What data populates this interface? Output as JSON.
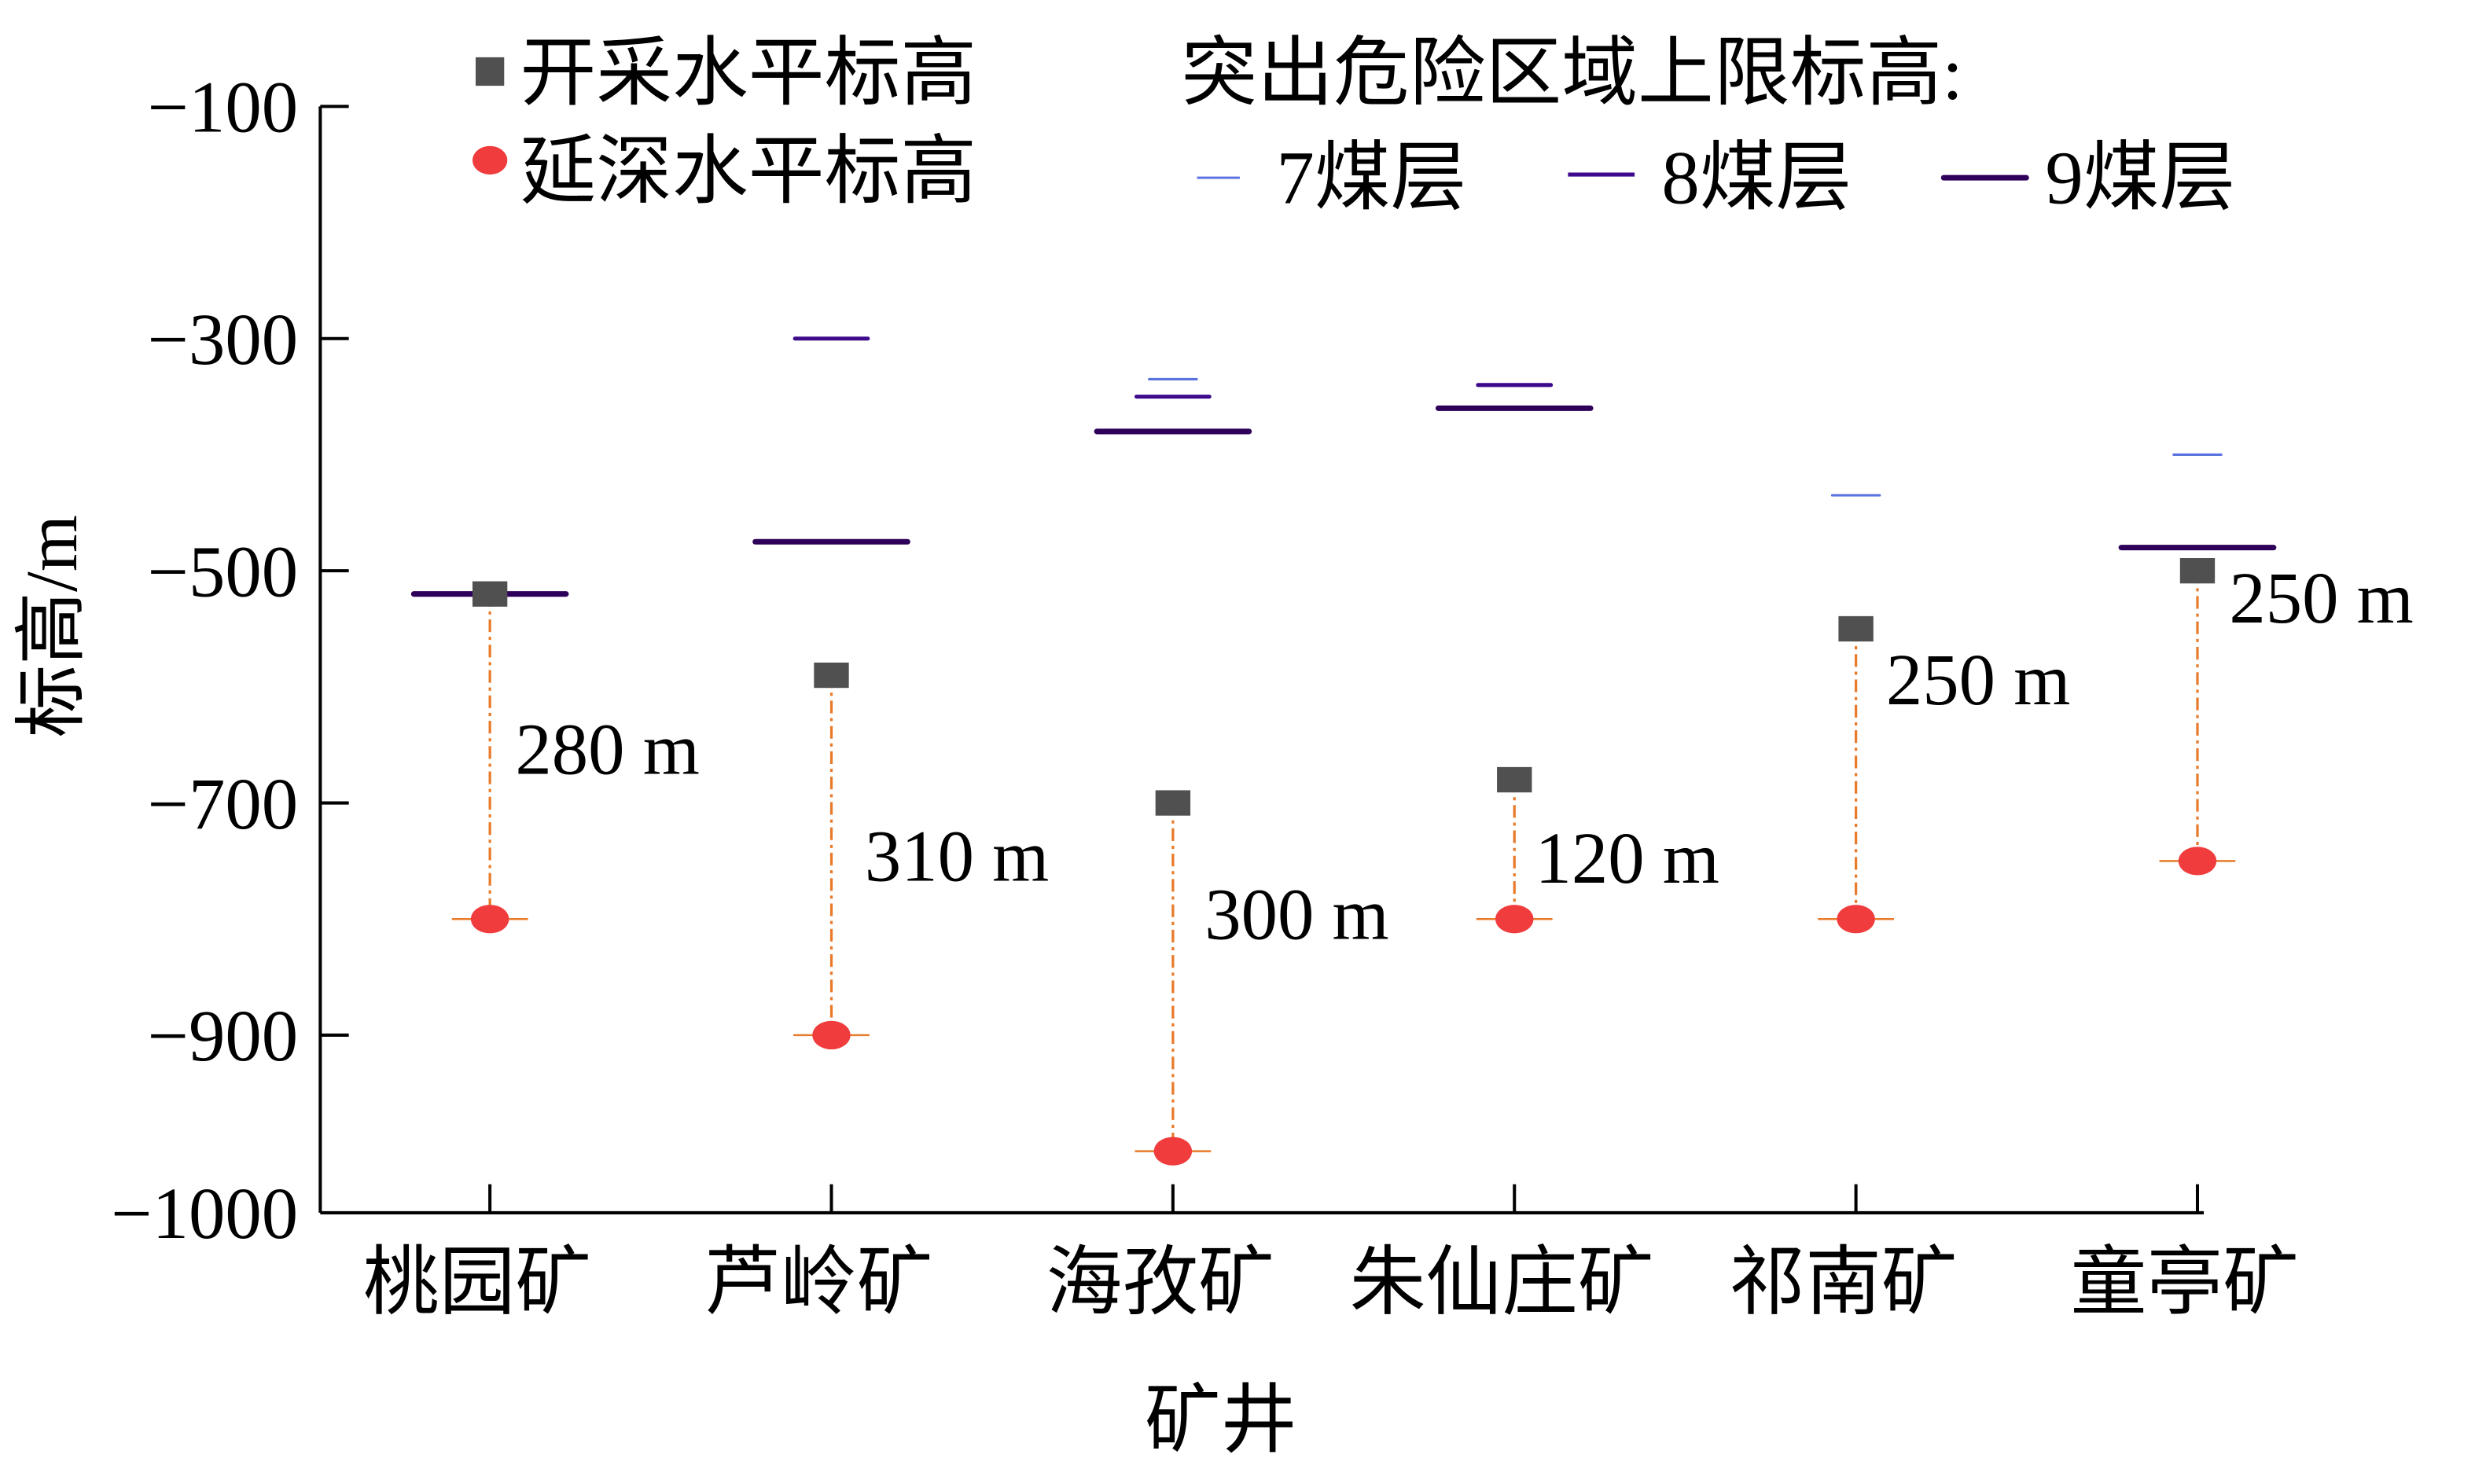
{
  "chart_data": {
    "type": "scatter",
    "title": "",
    "xlabel": "矿井",
    "ylabel": "标高/m",
    "ylim": [
      -1053,
      -100
    ],
    "yticks": [
      -100,
      -300,
      -500,
      -700,
      -900
    ],
    "ytick_labels": [
      "−100",
      "−300",
      "−500",
      "−700",
      "−900"
    ],
    "axis_bottom_label": "−1000",
    "categories": [
      "桃园矿",
      "芦岭矿",
      "海孜矿",
      "朱仙庄矿",
      "祁南矿",
      "童亭矿"
    ],
    "series": [
      {
        "name": "开采水平标高",
        "marker": "square",
        "color": "#505050",
        "values": [
          -520,
          -590,
          -700,
          -680,
          -550,
          -500
        ]
      },
      {
        "name": "延深水平标高",
        "marker": "circle",
        "color": "#f03c3c",
        "values": [
          -800,
          -900,
          -1000,
          -800,
          -800,
          -750
        ]
      }
    ],
    "outburst_upper_limit": {
      "legend_title": "突出危险区域上限标高:",
      "series": [
        {
          "name": "7煤层",
          "color": "#5b73e0",
          "values": [
            null,
            null,
            -335,
            null,
            -435,
            -400
          ]
        },
        {
          "name": "8煤层",
          "color": "#3d0a8c",
          "values": [
            null,
            -300,
            -350,
            -340,
            null,
            null
          ]
        },
        {
          "name": "9煤层",
          "color": "#2e0059",
          "values": [
            -520,
            -475,
            -380,
            -360,
            null,
            -480
          ]
        }
      ]
    },
    "depth_labels": [
      "280 m",
      "310 m",
      "300 m",
      "120 m",
      "250 m",
      "250 m"
    ],
    "connector_color": "#e87a2a",
    "legend_placement": "top"
  }
}
